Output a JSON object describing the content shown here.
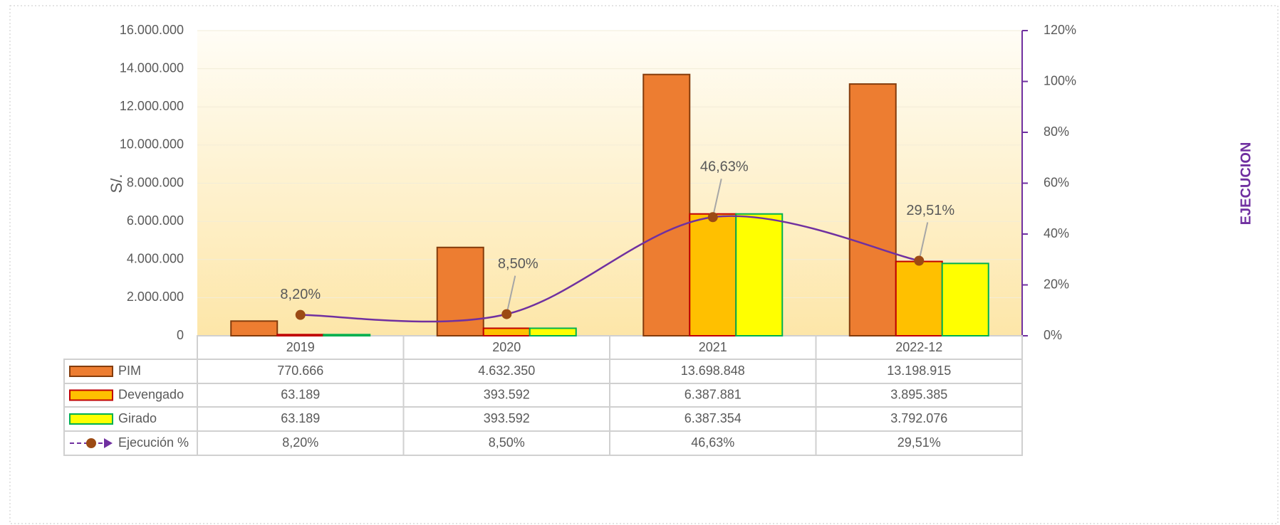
{
  "chart_data": {
    "type": "bar",
    "y_label": "S/.",
    "y2_label": "EJECUCION",
    "categories": [
      "2019",
      "2020",
      "2021",
      "2022-12"
    ],
    "series": [
      {
        "name": "PIM",
        "color": "#ed7d31",
        "edge": "#843c0c",
        "values": [
          770666,
          4632350,
          13698848,
          13198915
        ],
        "value_labels": [
          "770.666",
          "4.632.350",
          "13.698.848",
          "13.198.915"
        ]
      },
      {
        "name": "Devengado",
        "color": "#ffc000",
        "edge": "#c00000",
        "values": [
          63189,
          393592,
          6387881,
          3895385
        ],
        "value_labels": [
          "63.189",
          "393.592",
          "6.387.881",
          "3.895.385"
        ]
      },
      {
        "name": "Girado",
        "color": "#ffff00",
        "edge": "#00b050",
        "values": [
          63189,
          393592,
          6387354,
          3792076
        ],
        "value_labels": [
          "63.189",
          "393.592",
          "6.387.354",
          "3.792.076"
        ]
      },
      {
        "name": "Ejecución %",
        "type": "line",
        "axis": "y2",
        "color": "#7030a0",
        "marker_color": "#9c4a14",
        "values": [
          8.2,
          8.5,
          46.63,
          29.51
        ],
        "value_labels": [
          "8,20%",
          "8,50%",
          "46,63%",
          "29,51%"
        ]
      }
    ],
    "ylim": [
      0,
      16000000
    ],
    "yticks": [
      0,
      {
        "value": 2000000,
        "label": "2.000.000"
      },
      {
        "value": 4000000,
        "label": "4.000.000"
      },
      {
        "value": 6000000,
        "label": "6.000.000"
      },
      {
        "value": 8000000,
        "label": "8.000.000"
      },
      {
        "value": 10000000,
        "label": "10.000.000"
      },
      {
        "value": 12000000,
        "label": "12.000.000"
      },
      {
        "value": 14000000,
        "label": "14.000.000"
      },
      {
        "value": 16000000,
        "label": "16.000.000"
      }
    ],
    "y2lim": [
      0,
      120
    ],
    "y2ticks": [
      {
        "value": 0,
        "label": "0%"
      },
      {
        "value": 20,
        "label": "20%"
      },
      {
        "value": 40,
        "label": "40%"
      },
      {
        "value": 60,
        "label": "60%"
      },
      {
        "value": 80,
        "label": "80%"
      },
      {
        "value": 100,
        "label": "100%"
      },
      {
        "value": 120,
        "label": "120%"
      }
    ],
    "grid": true
  }
}
